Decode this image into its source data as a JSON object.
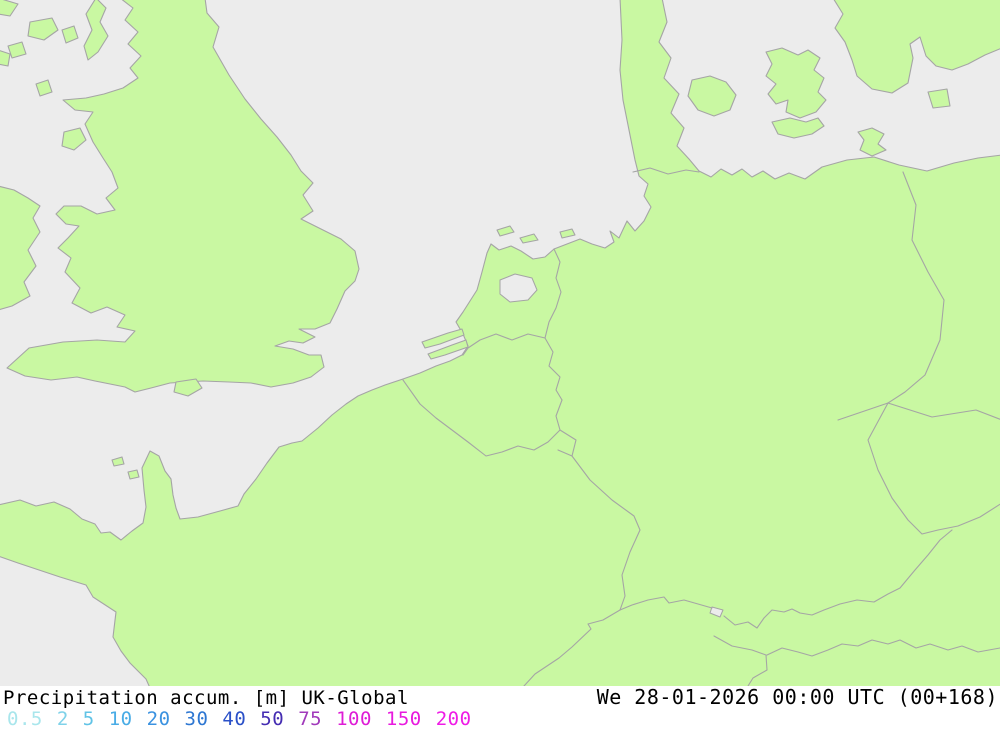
{
  "map": {
    "colors": {
      "land": "#c9f8a2",
      "sea": "#ececec",
      "outline": "#a5a5a5"
    }
  },
  "footer": {
    "title": "Precipitation accum. [m] UK-Global",
    "timestamp": "We 28-01-2026 00:00 UTC (00+168)",
    "text_color": "#000000",
    "legend": [
      {
        "label": "0.5",
        "color": "#a9e6ec"
      },
      {
        "label": "2",
        "color": "#7fd2e9"
      },
      {
        "label": "5",
        "color": "#61c3e6"
      },
      {
        "label": "10",
        "color": "#49ace6"
      },
      {
        "label": "20",
        "color": "#3b92e0"
      },
      {
        "label": "30",
        "color": "#2e77d2"
      },
      {
        "label": "40",
        "color": "#2a50c8"
      },
      {
        "label": "50",
        "color": "#452db2"
      },
      {
        "label": "75",
        "color": "#a13abb"
      },
      {
        "label": "100",
        "color": "#de1cd6"
      },
      {
        "label": "150",
        "color": "#e819de"
      },
      {
        "label": "200",
        "color": "#ef1be6"
      }
    ]
  }
}
